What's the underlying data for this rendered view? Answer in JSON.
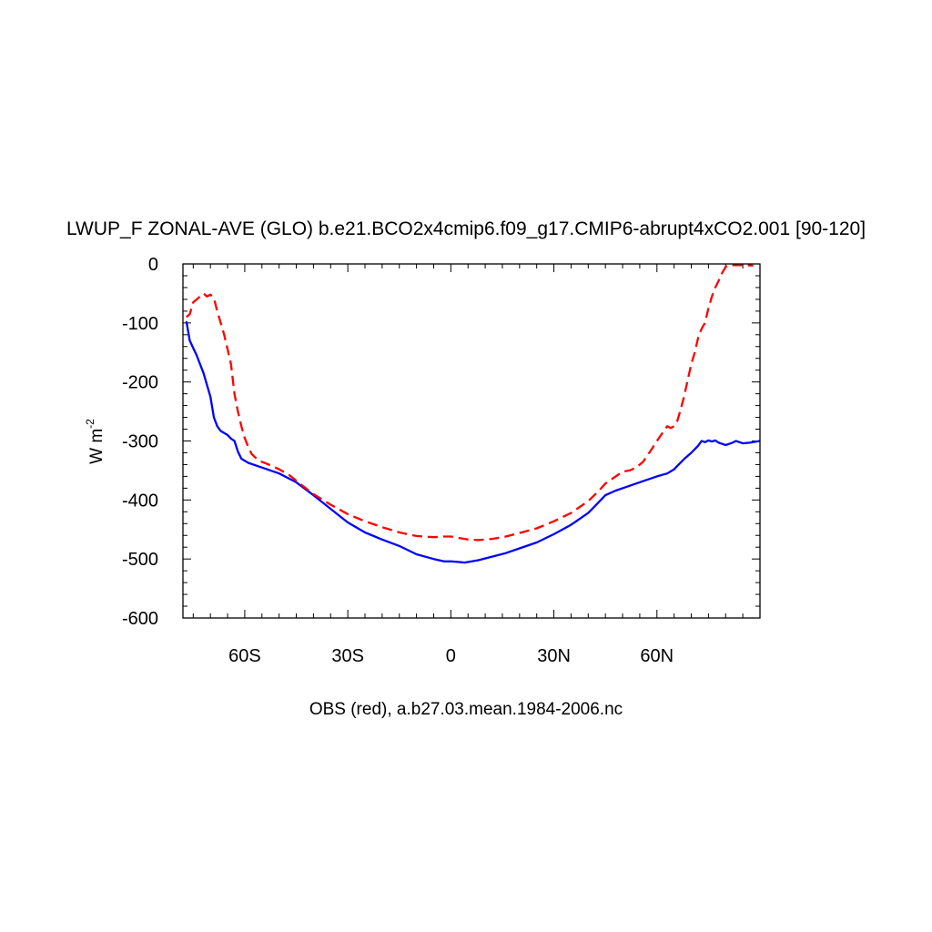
{
  "chart_data": {
    "type": "line",
    "title": "LWUP_F ZONAL-AVE (GLO) b.e21.BCO2x4cmip6.f09_g17.CMIP6-abrupt4xCO2.001 [90-120]",
    "xlabel": "OBS (red), a.b27.03.mean.1984-2006.nc",
    "ylabel_main": "W m",
    "ylabel_sup": "-2",
    "xlim": [
      -78,
      90
    ],
    "ylim": [
      -600,
      0
    ],
    "x_ticks": [
      {
        "value": -60,
        "label": "60S"
      },
      {
        "value": -30,
        "label": "30S"
      },
      {
        "value": 0,
        "label": "0"
      },
      {
        "value": 30,
        "label": "30N"
      },
      {
        "value": 60,
        "label": "60N"
      }
    ],
    "y_ticks": [
      {
        "value": 0,
        "label": "0"
      },
      {
        "value": -100,
        "label": "-100"
      },
      {
        "value": -200,
        "label": "-200"
      },
      {
        "value": -300,
        "label": "-300"
      },
      {
        "value": -400,
        "label": "-400"
      },
      {
        "value": -500,
        "label": "-500"
      },
      {
        "value": -600,
        "label": "-600"
      }
    ],
    "grid": false,
    "legend": "none",
    "series": [
      {
        "color": "#0000ff",
        "dash": "solid",
        "points": [
          [
            -77,
            -97
          ],
          [
            -76,
            -130
          ],
          [
            -74,
            -155
          ],
          [
            -72,
            -185
          ],
          [
            -70,
            -225
          ],
          [
            -69,
            -260
          ],
          [
            -68,
            -275
          ],
          [
            -67,
            -283
          ],
          [
            -65,
            -290
          ],
          [
            -64,
            -296
          ],
          [
            -63,
            -300
          ],
          [
            -62,
            -318
          ],
          [
            -61,
            -330
          ],
          [
            -59,
            -337
          ],
          [
            -55,
            -345
          ],
          [
            -50,
            -355
          ],
          [
            -45,
            -370
          ],
          [
            -40,
            -392
          ],
          [
            -35,
            -415
          ],
          [
            -30,
            -438
          ],
          [
            -25,
            -455
          ],
          [
            -20,
            -467
          ],
          [
            -15,
            -478
          ],
          [
            -10,
            -492
          ],
          [
            -5,
            -500
          ],
          [
            -2,
            -504
          ],
          [
            0,
            -504
          ],
          [
            2,
            -505
          ],
          [
            4,
            -506
          ],
          [
            8,
            -502
          ],
          [
            12,
            -496
          ],
          [
            16,
            -490
          ],
          [
            20,
            -482
          ],
          [
            25,
            -472
          ],
          [
            30,
            -458
          ],
          [
            35,
            -442
          ],
          [
            40,
            -422
          ],
          [
            42,
            -410
          ],
          [
            45,
            -392
          ],
          [
            48,
            -384
          ],
          [
            52,
            -376
          ],
          [
            56,
            -368
          ],
          [
            60,
            -360
          ],
          [
            63,
            -355
          ],
          [
            65,
            -348
          ],
          [
            66,
            -342
          ],
          [
            68,
            -330
          ],
          [
            70,
            -320
          ],
          [
            72,
            -308
          ],
          [
            73,
            -300
          ],
          [
            74,
            -302
          ],
          [
            75,
            -299
          ],
          [
            76,
            -301
          ],
          [
            77,
            -299
          ],
          [
            78,
            -303
          ],
          [
            79,
            -305
          ],
          [
            80,
            -307
          ],
          [
            82,
            -303
          ],
          [
            83,
            -300
          ],
          [
            85,
            -304
          ],
          [
            87,
            -303
          ],
          [
            90,
            -300
          ]
        ]
      },
      {
        "color": "#ff0000",
        "dash": "dashed",
        "points": [
          [
            -77,
            -90
          ],
          [
            -76,
            -85
          ],
          [
            -75,
            -65
          ],
          [
            -73,
            -55
          ],
          [
            -72,
            -50
          ],
          [
            -71,
            -55
          ],
          [
            -70,
            -52
          ],
          [
            -69,
            -58
          ],
          [
            -68,
            -80
          ],
          [
            -67,
            -100
          ],
          [
            -66,
            -120
          ],
          [
            -65,
            -145
          ],
          [
            -64,
            -170
          ],
          [
            -63,
            -220
          ],
          [
            -62,
            -250
          ],
          [
            -61,
            -275
          ],
          [
            -60,
            -295
          ],
          [
            -59,
            -310
          ],
          [
            -58,
            -322
          ],
          [
            -56,
            -333
          ],
          [
            -53,
            -340
          ],
          [
            -50,
            -348
          ],
          [
            -47,
            -358
          ],
          [
            -44,
            -372
          ],
          [
            -40,
            -390
          ],
          [
            -35,
            -408
          ],
          [
            -30,
            -424
          ],
          [
            -25,
            -436
          ],
          [
            -20,
            -446
          ],
          [
            -15,
            -455
          ],
          [
            -10,
            -461
          ],
          [
            -5,
            -463
          ],
          [
            -2,
            -462
          ],
          [
            0,
            -462
          ],
          [
            2,
            -464
          ],
          [
            5,
            -467
          ],
          [
            8,
            -468
          ],
          [
            12,
            -466
          ],
          [
            16,
            -462
          ],
          [
            20,
            -456
          ],
          [
            25,
            -448
          ],
          [
            30,
            -436
          ],
          [
            35,
            -422
          ],
          [
            40,
            -402
          ],
          [
            43,
            -385
          ],
          [
            45,
            -372
          ],
          [
            48,
            -360
          ],
          [
            50,
            -352
          ],
          [
            52,
            -350
          ],
          [
            54,
            -345
          ],
          [
            56,
            -335
          ],
          [
            58,
            -318
          ],
          [
            60,
            -300
          ],
          [
            62,
            -283
          ],
          [
            63,
            -275
          ],
          [
            64,
            -278
          ],
          [
            65,
            -275
          ],
          [
            66,
            -265
          ],
          [
            67,
            -245
          ],
          [
            68,
            -222
          ],
          [
            69,
            -195
          ],
          [
            70,
            -170
          ],
          [
            71,
            -150
          ],
          [
            72,
            -125
          ],
          [
            73,
            -110
          ],
          [
            74,
            -100
          ],
          [
            75,
            -75
          ],
          [
            76,
            -55
          ],
          [
            77,
            -40
          ],
          [
            78,
            -28
          ],
          [
            79,
            -15
          ],
          [
            80,
            -5
          ],
          [
            81,
            -2
          ],
          [
            82,
            -2
          ],
          [
            84,
            -2
          ],
          [
            86,
            -2
          ],
          [
            88,
            -3
          ]
        ]
      }
    ]
  }
}
